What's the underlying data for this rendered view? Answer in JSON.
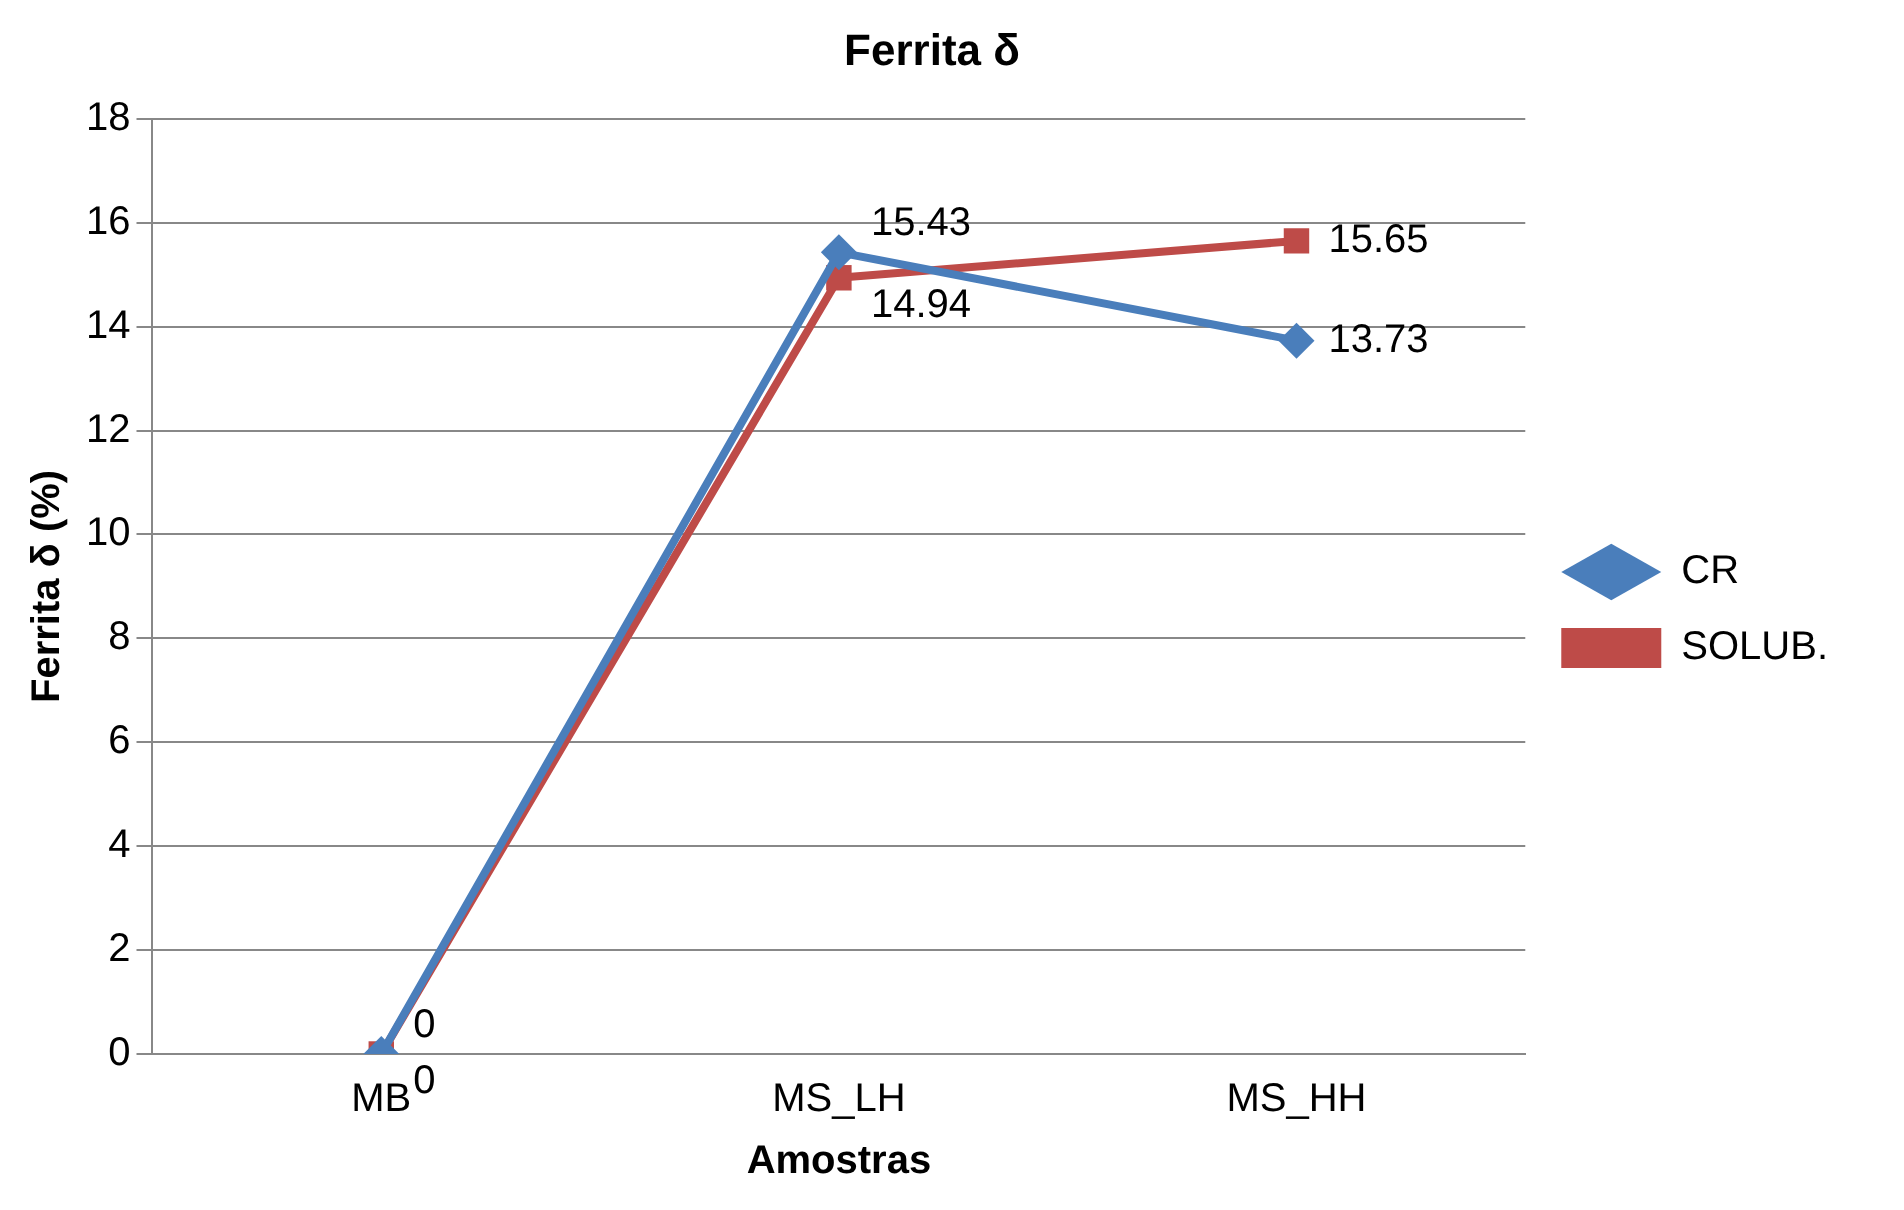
{
  "chart_data": {
    "type": "line",
    "title": "Ferrita δ",
    "xlabel": "Amostras",
    "ylabel": "Ferrita δ (%)",
    "categories": [
      "MB",
      "MS_LH",
      "MS_HH"
    ],
    "series": [
      {
        "name": "CR",
        "color": "#4a7ebb",
        "values": [
          0,
          15.43,
          13.73
        ],
        "marker": "diamond"
      },
      {
        "name": "SOLUB.",
        "color": "#be4b48",
        "values": [
          0,
          14.94,
          15.65
        ],
        "marker": "square"
      }
    ],
    "ylim": [
      0,
      18
    ],
    "yticks": [
      0,
      2,
      4,
      6,
      8,
      10,
      12,
      14,
      16,
      18
    ],
    "grid": "y",
    "legend": "right",
    "data_labels": true,
    "line_style": "solid"
  }
}
